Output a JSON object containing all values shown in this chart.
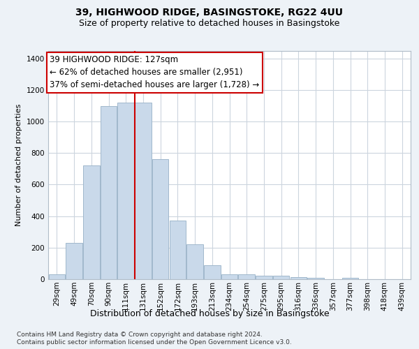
{
  "title1": "39, HIGHWOOD RIDGE, BASINGSTOKE, RG22 4UU",
  "title2": "Size of property relative to detached houses in Basingstoke",
  "xlabel": "Distribution of detached houses by size in Basingstoke",
  "ylabel": "Number of detached properties",
  "categories": [
    "29sqm",
    "49sqm",
    "70sqm",
    "90sqm",
    "111sqm",
    "131sqm",
    "152sqm",
    "172sqm",
    "193sqm",
    "213sqm",
    "234sqm",
    "254sqm",
    "275sqm",
    "295sqm",
    "316sqm",
    "336sqm",
    "357sqm",
    "377sqm",
    "398sqm",
    "418sqm",
    "439sqm"
  ],
  "bar_values": [
    30,
    230,
    720,
    1100,
    1120,
    1120,
    760,
    370,
    220,
    90,
    30,
    30,
    20,
    20,
    15,
    10,
    0,
    10,
    0,
    0,
    0
  ],
  "bar_color": "#c9d9ea",
  "bar_edgecolor": "#a0b8cc",
  "vline_index": 4.5,
  "vline_color": "#cc0000",
  "ann_line1": "39 HIGHWOOD RIDGE: 127sqm",
  "ann_line2": "← 62% of detached houses are smaller (2,951)",
  "ann_line3": "37% of semi-detached houses are larger (1,728) →",
  "ylim": [
    0,
    1450
  ],
  "yticks": [
    0,
    200,
    400,
    600,
    800,
    1000,
    1200,
    1400
  ],
  "footer1": "Contains HM Land Registry data © Crown copyright and database right 2024.",
  "footer2": "Contains public sector information licensed under the Open Government Licence v3.0.",
  "bg_color": "#edf2f7",
  "plot_bg_color": "#ffffff",
  "grid_color": "#ccd5de",
  "ann_box_edgecolor": "#cc0000",
  "title1_fontsize": 10,
  "title2_fontsize": 9,
  "ann_fontsize": 8.5,
  "ylabel_fontsize": 8,
  "xlabel_fontsize": 9,
  "footer_fontsize": 6.5,
  "tick_fontsize": 7.5
}
